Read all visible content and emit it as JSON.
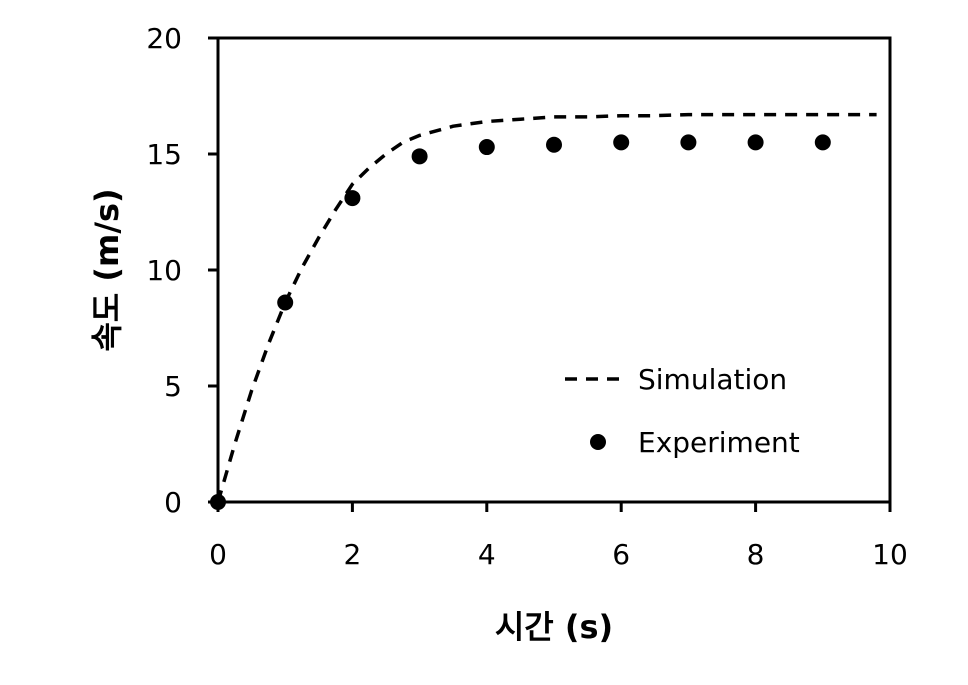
{
  "chart_data": {
    "type": "line",
    "xlabel": "시간 (s)",
    "ylabel": "속도 (m/s)",
    "xlim": [
      0,
      10
    ],
    "ylim": [
      0,
      20
    ],
    "x_ticks": [
      "0",
      "2",
      "4",
      "6",
      "8",
      "10"
    ],
    "y_ticks": [
      "0",
      "5",
      "10",
      "15",
      "20"
    ],
    "grid": false,
    "legend_position": "bottom-right",
    "series": [
      {
        "name": "Simulation",
        "style": "dashed-line",
        "color": "#000000",
        "x": [
          0,
          0.25,
          0.5,
          0.75,
          1,
          1.25,
          1.5,
          1.75,
          2,
          2.25,
          2.5,
          2.75,
          3,
          3.5,
          4,
          4.5,
          5,
          5.5,
          6,
          6.5,
          7,
          7.5,
          8,
          8.5,
          9,
          9.5,
          9.8
        ],
        "y": [
          0,
          2.5,
          4.8,
          6.8,
          8.6,
          10.1,
          11.4,
          12.6,
          13.7,
          14.4,
          15.0,
          15.5,
          15.8,
          16.2,
          16.4,
          16.5,
          16.6,
          16.6,
          16.65,
          16.65,
          16.7,
          16.7,
          16.7,
          16.7,
          16.7,
          16.7,
          16.7
        ]
      },
      {
        "name": "Experiment",
        "style": "markers",
        "color": "#000000",
        "x": [
          0,
          1,
          2,
          3,
          4,
          5,
          6,
          7,
          8,
          9
        ],
        "y": [
          0,
          8.6,
          13.1,
          14.9,
          15.3,
          15.4,
          15.5,
          15.5,
          15.5,
          15.5
        ]
      }
    ]
  }
}
